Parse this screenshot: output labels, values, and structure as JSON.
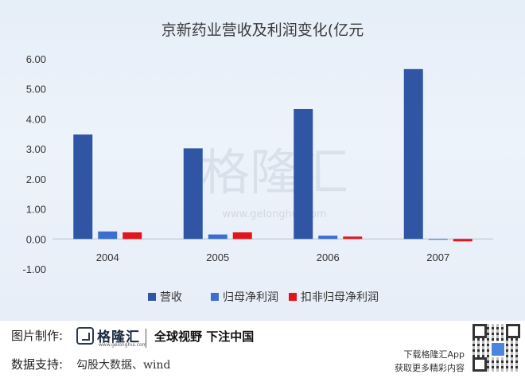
{
  "chart_data": {
    "type": "bar",
    "title": "京新药业营收及利润变化(亿元",
    "categories": [
      "2004",
      "2005",
      "2006",
      "2007"
    ],
    "series": [
      {
        "name": "营收",
        "color": "#2f55a4",
        "values": [
          3.48,
          3.02,
          4.33,
          5.66
        ]
      },
      {
        "name": "归母净利润",
        "color": "#3a6fd0",
        "values": [
          0.25,
          0.15,
          0.11,
          -0.01
        ]
      },
      {
        "name": "扣非归母净利润",
        "color": "#e3141c",
        "values": [
          0.22,
          0.22,
          0.08,
          -0.08
        ]
      }
    ],
    "ylim": [
      -1.0,
      6.0
    ],
    "yticks": [
      "6.00",
      "5.00",
      "4.00",
      "3.00",
      "2.00",
      "1.00",
      "0.00",
      "-1.00"
    ],
    "grid": false,
    "legend": "bottom",
    "watermark": "格隆汇 www.gelonghui.com"
  },
  "footer": {
    "made_by_label": "图片制作:",
    "brand": "格隆汇",
    "brand_url": "www.gelonghui.com",
    "slogan": "全球视野 下注中国",
    "data_support_label": "数据支持:",
    "data_support_value": "勾股大数据、wind",
    "app_download": "下载格隆汇App",
    "app_sub": "获取更多精彩内容"
  }
}
